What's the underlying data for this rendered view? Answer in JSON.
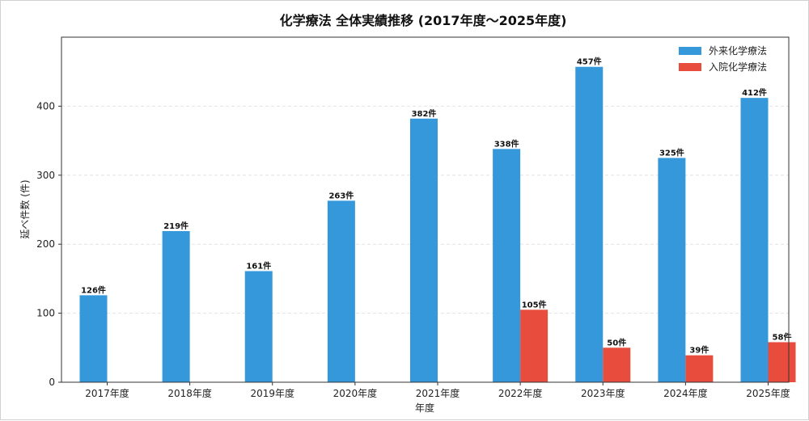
{
  "chart_data": {
    "type": "bar",
    "title": "化学療法 全体実績推移 (2017年度〜2025年度)",
    "xlabel": "年度",
    "ylabel": "延べ件数 (件)",
    "ylim": [
      0,
      500
    ],
    "yticks": [
      0,
      100,
      200,
      300,
      400
    ],
    "grid": true,
    "legend_position": "top-right",
    "value_suffix": "件",
    "categories": [
      "2017年度",
      "2018年度",
      "2019年度",
      "2020年度",
      "2021年度",
      "2022年度",
      "2023年度",
      "2024年度",
      "2025年度"
    ],
    "series": [
      {
        "name": "外来化学療法",
        "color": "#3498db",
        "values": [
          126,
          219,
          161,
          263,
          382,
          338,
          457,
          325,
          412
        ]
      },
      {
        "name": "入院化学療法",
        "color": "#e74c3c",
        "values": [
          null,
          null,
          null,
          null,
          null,
          105,
          50,
          39,
          58
        ]
      }
    ]
  }
}
